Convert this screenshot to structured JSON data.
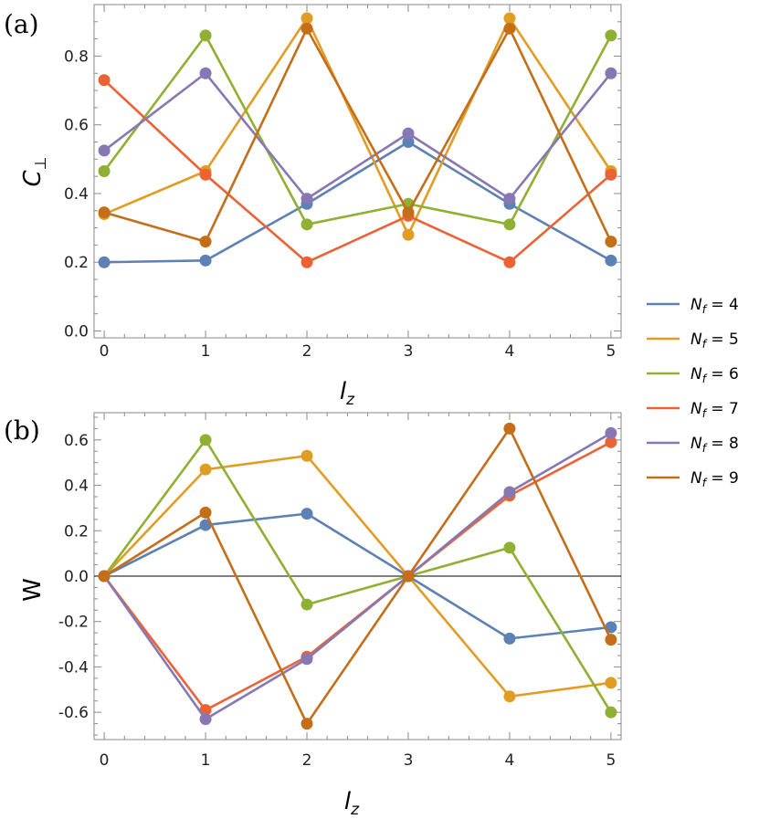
{
  "chart_data": [
    {
      "type": "line",
      "panel_label": "(a)",
      "xlabel": "l",
      "xlabel_sub": "z",
      "ylabel": "C",
      "ylabel_sub": "⊥",
      "x": [
        0,
        1,
        2,
        3,
        4,
        5
      ],
      "xlim": [
        -0.1,
        5.1
      ],
      "ylim": [
        -0.02,
        0.95
      ],
      "xticks": [
        "0",
        "1",
        "2",
        "3",
        "4",
        "5"
      ],
      "yticks": [
        "0.0",
        "0.2",
        "0.4",
        "0.6",
        "0.8"
      ],
      "ytick_values": [
        0.0,
        0.2,
        0.4,
        0.6,
        0.8
      ],
      "zero_line": false,
      "series": [
        {
          "name": "N_f = 4",
          "color": "#5E81B5",
          "values": [
            0.2,
            0.205,
            0.37,
            0.55,
            0.37,
            0.205
          ]
        },
        {
          "name": "N_f = 5",
          "color": "#E19C24",
          "values": [
            0.34,
            0.465,
            0.91,
            0.28,
            0.91,
            0.465
          ]
        },
        {
          "name": "N_f = 6",
          "color": "#8FB032",
          "values": [
            0.465,
            0.86,
            0.31,
            0.37,
            0.31,
            0.86
          ]
        },
        {
          "name": "N_f = 7",
          "color": "#EB6235",
          "values": [
            0.73,
            0.455,
            0.2,
            0.335,
            0.2,
            0.455
          ]
        },
        {
          "name": "N_f = 8",
          "color": "#8778B3",
          "values": [
            0.525,
            0.75,
            0.385,
            0.575,
            0.385,
            0.75
          ]
        },
        {
          "name": "N_f = 9",
          "color": "#C56E1A",
          "values": [
            0.345,
            0.26,
            0.88,
            0.345,
            0.88,
            0.26
          ]
        }
      ]
    },
    {
      "type": "line",
      "panel_label": "(b)",
      "xlabel": "l",
      "xlabel_sub": "z",
      "ylabel": "W",
      "ylabel_sub": "",
      "x": [
        0,
        1,
        2,
        3,
        4,
        5
      ],
      "xlim": [
        -0.1,
        5.1
      ],
      "ylim": [
        -0.72,
        0.72
      ],
      "xticks": [
        "0",
        "1",
        "2",
        "3",
        "4",
        "5"
      ],
      "yticks": [
        "-0.6",
        "-0.4",
        "-0.2",
        "0.0",
        "0.2",
        "0.4",
        "0.6"
      ],
      "ytick_values": [
        -0.6,
        -0.4,
        -0.2,
        0.0,
        0.2,
        0.4,
        0.6
      ],
      "zero_line": true,
      "series": [
        {
          "name": "N_f = 4",
          "color": "#5E81B5",
          "values": [
            0.0,
            0.225,
            0.275,
            0.0,
            -0.275,
            -0.225
          ]
        },
        {
          "name": "N_f = 5",
          "color": "#E19C24",
          "values": [
            0.0,
            0.47,
            0.53,
            0.0,
            -0.53,
            -0.47
          ]
        },
        {
          "name": "N_f = 6",
          "color": "#8FB032",
          "values": [
            0.0,
            0.6,
            -0.125,
            0.0,
            0.125,
            -0.6
          ]
        },
        {
          "name": "N_f = 7",
          "color": "#EB6235",
          "values": [
            0.0,
            -0.59,
            -0.355,
            0.0,
            0.355,
            0.59
          ]
        },
        {
          "name": "N_f = 8",
          "color": "#8778B3",
          "values": [
            0.0,
            -0.63,
            -0.365,
            0.0,
            0.37,
            0.63
          ]
        },
        {
          "name": "N_f = 9",
          "color": "#C56E1A",
          "values": [
            0.0,
            0.28,
            -0.65,
            0.0,
            0.65,
            -0.28
          ]
        }
      ]
    }
  ],
  "legend": {
    "position": "right",
    "entries": [
      {
        "symbol": "N",
        "sub": "f",
        "text": " = 4",
        "color": "#5E81B5"
      },
      {
        "symbol": "N",
        "sub": "f",
        "text": " = 5",
        "color": "#E19C24"
      },
      {
        "symbol": "N",
        "sub": "f",
        "text": " = 6",
        "color": "#8FB032"
      },
      {
        "symbol": "N",
        "sub": "f",
        "text": " = 7",
        "color": "#EB6235"
      },
      {
        "symbol": "N",
        "sub": "f",
        "text": " = 8",
        "color": "#8778B3"
      },
      {
        "symbol": "N",
        "sub": "f",
        "text": " = 9",
        "color": "#C56E1A"
      }
    ]
  }
}
